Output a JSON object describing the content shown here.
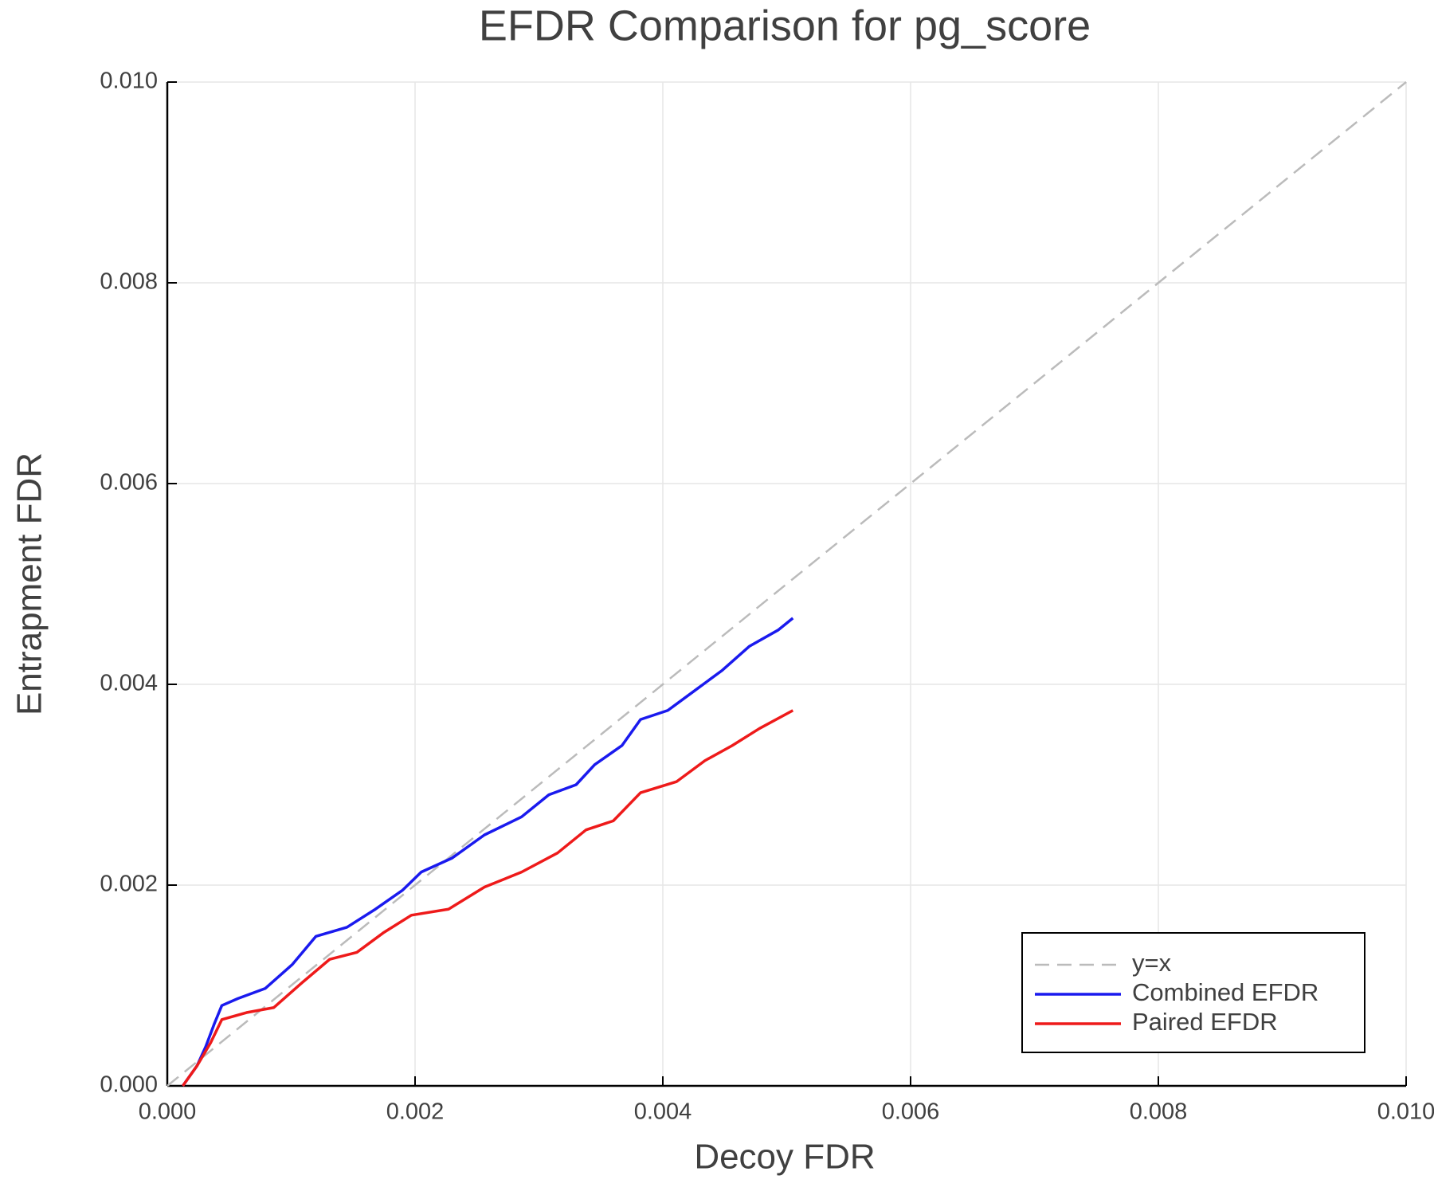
{
  "chart_data": {
    "type": "line",
    "title": "EFDR Comparison for pg_score",
    "x_label": "Decoy FDR",
    "y_label": "Entrapment FDR",
    "xlim": [
      0,
      0.01
    ],
    "ylim": [
      0,
      0.01
    ],
    "xticks": [
      {
        "value": 0,
        "label": "0.000"
      },
      0.002,
      0.004,
      0.006,
      0.008,
      {
        "value": 0.01,
        "label": "0.010"
      }
    ],
    "yticks": [
      {
        "value": 0,
        "label": "0.000"
      },
      0.002,
      0.004,
      0.006,
      0.008,
      {
        "value": 0.01,
        "label": "0.010"
      }
    ],
    "grid": true,
    "legend": "lower right",
    "series": [
      {
        "name": "y=x",
        "color": "#bbbbbb",
        "dashed": true,
        "x": [
          0,
          0.01
        ],
        "values": [
          0,
          0.01
        ]
      },
      {
        "name": "Combined EFDR",
        "color": "#1a1aee",
        "dashed": false,
        "x": [
          0.000125,
          0.00024,
          0.00031,
          0.00038,
          0.00044,
          0.00057,
          0.00079,
          0.00101,
          0.0012,
          0.00145,
          0.00168,
          0.0019,
          0.00205,
          0.0023,
          0.00256,
          0.00286,
          0.00308,
          0.0033,
          0.00345,
          0.00367,
          0.00382,
          0.00404,
          0.00426,
          0.00448,
          0.0047,
          0.00493,
          0.00505
        ],
        "values": [
          0,
          0.0002,
          0.00039,
          0.00062,
          0.0008,
          0.00087,
          0.00097,
          0.00121,
          0.00149,
          0.00158,
          0.00176,
          0.00195,
          0.00213,
          0.00227,
          0.0025,
          0.00268,
          0.0029,
          0.003,
          0.0032,
          0.00339,
          0.00365,
          0.00374,
          0.00394,
          0.00414,
          0.00438,
          0.00454,
          0.00466
        ]
      },
      {
        "name": "Paired EFDR",
        "color": "#ee1a1a",
        "dashed": false,
        "x": [
          0.000125,
          0.00024,
          0.00035,
          0.00044,
          0.00064,
          0.00086,
          0.00109,
          0.00131,
          0.00153,
          0.00175,
          0.00197,
          0.00227,
          0.00256,
          0.00286,
          0.00315,
          0.00338,
          0.0036,
          0.00382,
          0.00411,
          0.00434,
          0.00456,
          0.00478,
          0.00505
        ],
        "values": [
          0,
          0.0002,
          0.00043,
          0.00066,
          0.00073,
          0.00078,
          0.00103,
          0.00126,
          0.00133,
          0.00153,
          0.0017,
          0.00176,
          0.00198,
          0.00213,
          0.00232,
          0.00255,
          0.00264,
          0.00292,
          0.00303,
          0.00324,
          0.00339,
          0.00356,
          0.00374
        ]
      }
    ]
  }
}
